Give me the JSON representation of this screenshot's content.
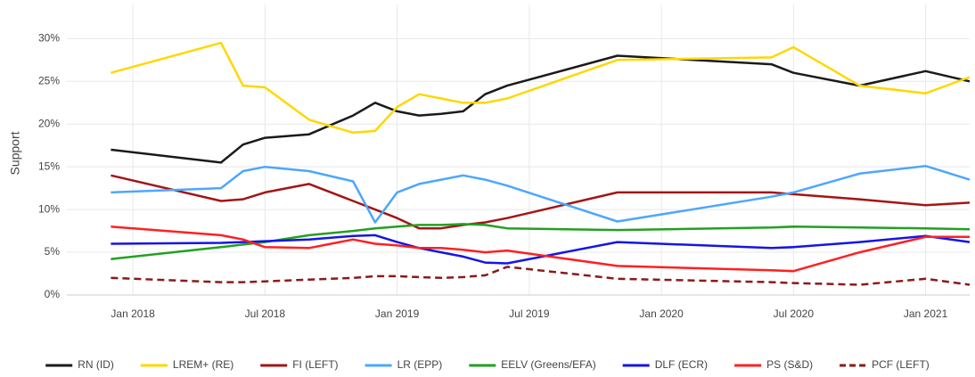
{
  "chart_data": {
    "type": "line",
    "y_label": "Support",
    "x": [
      "2017-12",
      "2018-05",
      "2018-06",
      "2018-07",
      "2018-09",
      "2018-11",
      "2018-12",
      "2019-01",
      "2019-02",
      "2019-03",
      "2019-04",
      "2019-05",
      "2019-06",
      "2019-11",
      "2020-06",
      "2020-07",
      "2020-10",
      "2021-01",
      "2021-03"
    ],
    "xlim": [
      "2017-10",
      "2021-03"
    ],
    "xticks": [
      {
        "value": "2018-01",
        "label": "Jan 2018"
      },
      {
        "value": "2018-07",
        "label": "Jul 2018"
      },
      {
        "value": "2019-01",
        "label": "Jan 2019"
      },
      {
        "value": "2019-07",
        "label": "Jul 2019"
      },
      {
        "value": "2020-01",
        "label": "Jan 2020"
      },
      {
        "value": "2020-07",
        "label": "Jul 2020"
      },
      {
        "value": "2021-01",
        "label": "Jan 2021"
      }
    ],
    "ylim": [
      0,
      34
    ],
    "yticks": [
      {
        "value": 0,
        "label": "0%"
      },
      {
        "value": 5,
        "label": "5%"
      },
      {
        "value": 10,
        "label": "10%"
      },
      {
        "value": 15,
        "label": "15%"
      },
      {
        "value": 20,
        "label": "20%"
      },
      {
        "value": 25,
        "label": "25%"
      },
      {
        "value": 30,
        "label": "30%"
      }
    ],
    "grid": true,
    "legend": "bottom",
    "series": [
      {
        "name": "RN (ID)",
        "color": "#1a1a1a",
        "dash": false,
        "values": [
          17,
          15.5,
          17.6,
          18.4,
          18.8,
          21,
          22.5,
          21.5,
          21,
          21.2,
          21.5,
          23.5,
          24.5,
          28,
          27,
          26,
          24.5,
          26.2,
          25
        ]
      },
      {
        "name": "LREM+ (RE)",
        "color": "#ffd700",
        "dash": false,
        "values": [
          26,
          29.5,
          24.5,
          24.3,
          20.5,
          19,
          19.2,
          22,
          23.5,
          23,
          22.5,
          22.5,
          23,
          27.5,
          27.8,
          29,
          24.5,
          23.6,
          25.5
        ]
      },
      {
        "name": "FI (LEFT)",
        "color": "#a31515",
        "dash": false,
        "values": [
          14,
          11,
          11.2,
          12,
          13,
          11,
          10,
          9,
          7.8,
          7.8,
          8.2,
          8.5,
          9,
          12,
          12,
          11.8,
          11.2,
          10.5,
          10.8
        ]
      },
      {
        "name": "LR (EPP)",
        "color": "#4da6ff",
        "dash": false,
        "values": [
          12,
          12.5,
          14.5,
          15,
          14.5,
          13.3,
          8.5,
          12,
          13,
          13.5,
          14,
          13.5,
          12.8,
          8.6,
          11.5,
          12,
          14.2,
          15.1,
          13.5
        ]
      },
      {
        "name": "EELV (Greens/EFA)",
        "color": "#22a022",
        "dash": false,
        "values": [
          4.2,
          5.6,
          5.9,
          6.2,
          7,
          7.5,
          7.8,
          8,
          8.2,
          8.2,
          8.3,
          8.2,
          7.8,
          7.6,
          7.9,
          8,
          7.9,
          7.8,
          7.7
        ]
      },
      {
        "name": "DLF (ECR)",
        "color": "#1515e6",
        "dash": false,
        "values": [
          6,
          6.1,
          6.2,
          6.3,
          6.5,
          6.9,
          7,
          6.2,
          5.5,
          5,
          4.5,
          3.8,
          3.7,
          6.2,
          5.5,
          5.6,
          6.2,
          6.9,
          6.2
        ]
      },
      {
        "name": "PS (S&D)",
        "color": "#ff2020",
        "dash": false,
        "values": [
          8,
          7,
          6.5,
          5.6,
          5.5,
          6.5,
          6,
          5.8,
          5.5,
          5.5,
          5.3,
          5,
          5.2,
          3.4,
          2.9,
          2.8,
          5,
          6.8,
          6.8
        ]
      },
      {
        "name": "PCF (LEFT)",
        "color": "#8b1a1a",
        "dash": true,
        "values": [
          2,
          1.5,
          1.5,
          1.6,
          1.8,
          2,
          2.2,
          2.2,
          2.1,
          2,
          2.1,
          2.3,
          3.3,
          1.9,
          1.5,
          1.4,
          1.2,
          1.9,
          1.2
        ]
      }
    ]
  }
}
